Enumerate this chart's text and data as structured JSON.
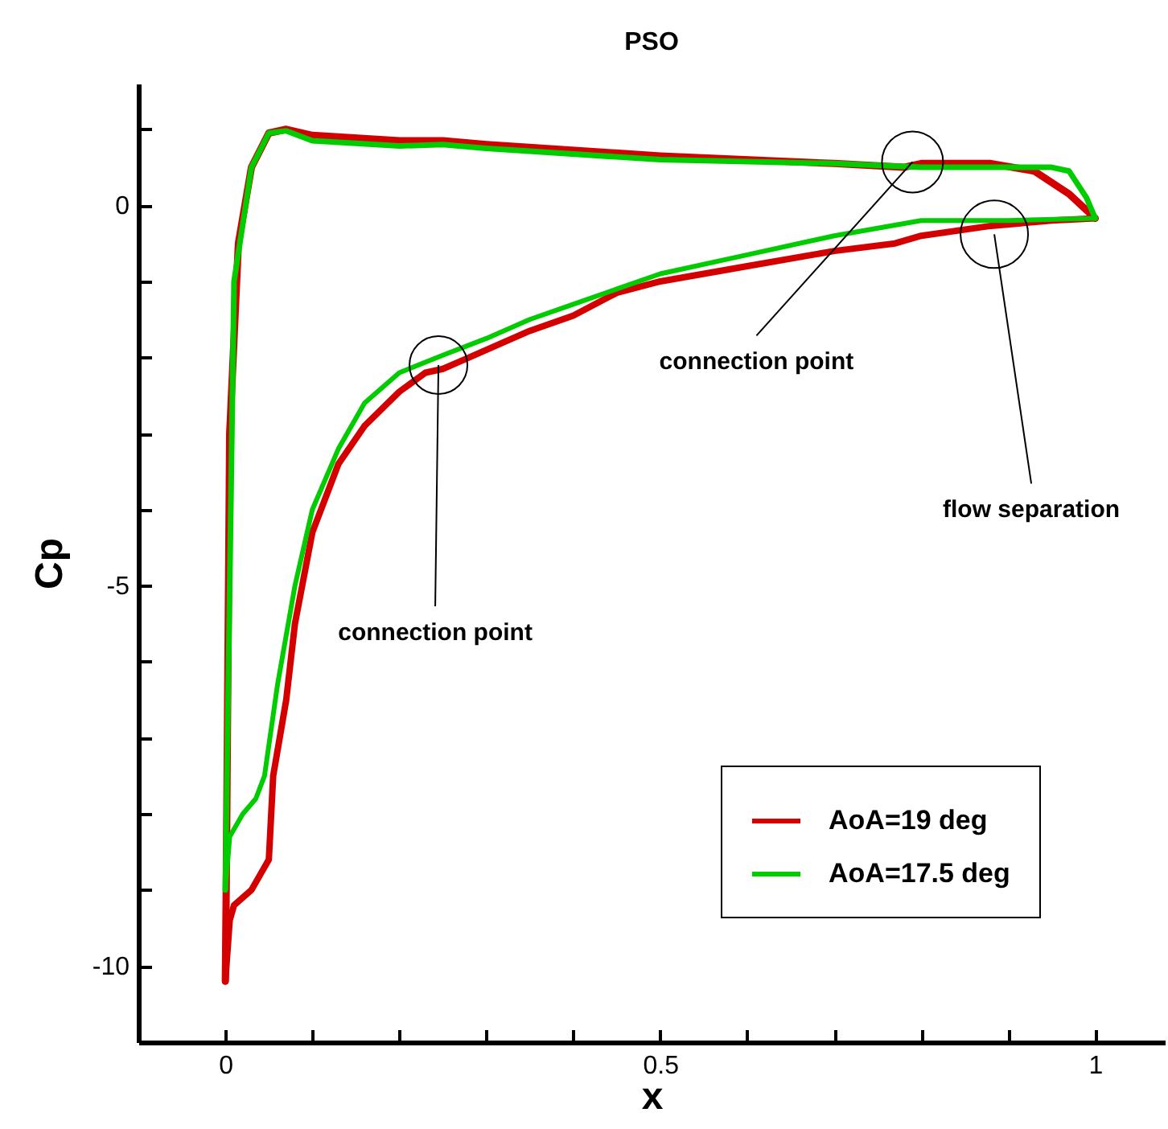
{
  "chart_data": {
    "type": "line",
    "title": "PSO",
    "xlabel": "x",
    "ylabel": "Cp",
    "xlim": [
      -0.1,
      1.08
    ],
    "ylim": [
      -11,
      1.6
    ],
    "xticks": [
      0,
      {
        "value": 0.1,
        "label": null
      },
      {
        "value": 0.2,
        "label": null
      },
      {
        "value": 0.3,
        "label": null
      },
      {
        "value": 0.4,
        "label": null
      },
      0.5,
      {
        "value": 0.6,
        "label": null
      },
      {
        "value": 0.7,
        "label": null
      },
      {
        "value": 0.8,
        "label": null
      },
      {
        "value": 0.9,
        "label": null
      },
      1
    ],
    "yticks": [
      {
        "value": 1,
        "label": null
      },
      0,
      {
        "value": -1,
        "label": null
      },
      {
        "value": -2,
        "label": null
      },
      {
        "value": -3,
        "label": null
      },
      {
        "value": -4,
        "label": null
      },
      -5,
      {
        "value": -6,
        "label": null
      },
      {
        "value": -7,
        "label": null
      },
      {
        "value": -8,
        "label": null
      },
      {
        "value": -9,
        "label": null
      },
      -10,
      {
        "value": -11,
        "label": null
      }
    ],
    "grid": false,
    "legend": "bottom right",
    "marker": "none",
    "line_style": "solid",
    "series": [
      {
        "name": "AoA=19 deg",
        "color": "#d40000",
        "x": [
          0,
          0.001,
          0.005,
          0.015,
          0.03,
          0.05,
          0.07,
          0.1,
          0.2,
          0.25,
          0.3,
          0.5,
          0.7,
          0.78,
          0.8,
          0.88,
          0.93,
          0.97,
          1
        ],
        "values": [
          -10.2,
          -9,
          -3,
          -0.5,
          0.5,
          0.95,
          1.0,
          0.92,
          0.85,
          0.85,
          0.8,
          0.65,
          0.55,
          0.5,
          0.55,
          0.55,
          0.45,
          0.15,
          -0.17
        ]
      },
      {
        "color": "#d40000",
        "x": [
          0,
          0.005,
          0.01,
          0.02,
          0.03,
          0.04,
          0.05,
          0.055,
          0.07,
          0.08,
          0.1,
          0.13,
          0.16,
          0.2,
          0.23,
          0.25,
          0.27,
          0.3,
          0.35,
          0.4,
          0.45,
          0.5,
          0.6,
          0.7,
          0.77,
          0.8,
          0.88,
          0.95,
          1
        ],
        "values": [
          -10.2,
          -9.4,
          -9.2,
          -9.1,
          -9.0,
          -8.8,
          -8.6,
          -7.5,
          -6.5,
          -5.5,
          -4.3,
          -3.4,
          -2.9,
          -2.45,
          -2.2,
          -2.15,
          -2.05,
          -1.9,
          -1.65,
          -1.45,
          -1.15,
          -1.0,
          -0.8,
          -0.6,
          -0.5,
          -0.4,
          -0.27,
          -0.2,
          -0.17
        ]
      },
      {
        "name": "AoA=17.5 deg",
        "color": "#00cc00",
        "x": [
          0,
          0.01,
          0.03,
          0.05,
          0.07,
          0.1,
          0.2,
          0.25,
          0.3,
          0.5,
          0.7,
          0.8,
          0.9,
          0.95,
          0.97,
          0.99,
          1
        ],
        "values": [
          -9.0,
          -1,
          0.5,
          0.95,
          0.98,
          0.85,
          0.78,
          0.8,
          0.75,
          0.6,
          0.55,
          0.5,
          0.5,
          0.5,
          0.45,
          0.1,
          -0.17
        ]
      },
      {
        "color": "#00cc00",
        "x": [
          0,
          0.005,
          0.02,
          0.035,
          0.045,
          0.06,
          0.08,
          0.1,
          0.13,
          0.16,
          0.2,
          0.25,
          0.3,
          0.35,
          0.4,
          0.45,
          0.5,
          0.6,
          0.7,
          0.8,
          0.9,
          1
        ],
        "values": [
          -9.0,
          -8.3,
          -8.0,
          -7.8,
          -7.5,
          -6.3,
          -5.0,
          -4.0,
          -3.2,
          -2.6,
          -2.2,
          -1.97,
          -1.75,
          -1.5,
          -1.3,
          -1.1,
          -0.9,
          -0.65,
          -0.4,
          -0.2,
          -0.2,
          -0.17
        ]
      }
    ],
    "annotations": [
      {
        "text": "connection point",
        "x": 0.245,
        "y": -2.1
      },
      {
        "text": "connection point",
        "x": 0.79,
        "y": 0.57
      },
      {
        "text": "flow separation",
        "x": 0.884,
        "y": -0.38
      }
    ]
  }
}
